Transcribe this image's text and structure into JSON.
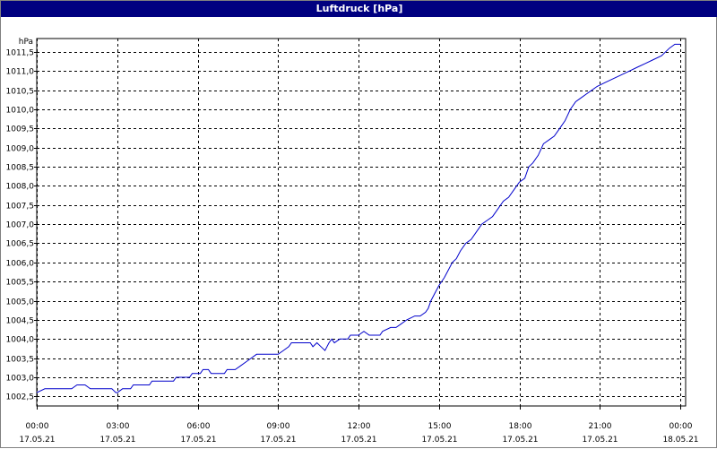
{
  "window": {
    "title": "Luftdruck [hPa]"
  },
  "chart_data": {
    "type": "line",
    "title": "Luftdruck [hPa]",
    "ylabel": "hPa",
    "xlabel": "",
    "grid": true,
    "legend": "none",
    "ylim": [
      1002.25,
      1011.85
    ],
    "yticks": [
      1002.5,
      1003.0,
      1003.5,
      1004.0,
      1004.5,
      1005.0,
      1005.5,
      1006.0,
      1006.5,
      1007.0,
      1007.5,
      1008.0,
      1008.5,
      1009.0,
      1009.5,
      1010.0,
      1010.5,
      1011.0,
      1011.5
    ],
    "ytick_labels": [
      "1002,5",
      "1003,0",
      "1003,5",
      "1004,0",
      "1004,5",
      "1005,0",
      "1005,5",
      "1006,0",
      "1006,5",
      "1007,0",
      "1007,5",
      "1008,0",
      "1008,5",
      "1009,0",
      "1009,5",
      "1010,0",
      "1010,5",
      "1011,0",
      "1011,5"
    ],
    "xlim": [
      0,
      24.2
    ],
    "xticks": [
      {
        "hour": 0,
        "time": "00:00",
        "date": "17.05.21"
      },
      {
        "hour": 3,
        "time": "03:00",
        "date": "17.05.21"
      },
      {
        "hour": 6,
        "time": "06:00",
        "date": "17.05.21"
      },
      {
        "hour": 9,
        "time": "09:00",
        "date": "17.05.21"
      },
      {
        "hour": 12,
        "time": "12:00",
        "date": "17.05.21"
      },
      {
        "hour": 15,
        "time": "15:00",
        "date": "17.05.21"
      },
      {
        "hour": 18,
        "time": "18:00",
        "date": "17.05.21"
      },
      {
        "hour": 21,
        "time": "21:00",
        "date": "17.05.21"
      },
      {
        "hour": 24,
        "time": "00:00",
        "date": "18.05.21"
      }
    ],
    "series": [
      {
        "color": "#0000cc",
        "points": [
          [
            0.0,
            1002.6
          ],
          [
            0.3,
            1002.7
          ],
          [
            0.6,
            1002.7
          ],
          [
            1.0,
            1002.7
          ],
          [
            1.3,
            1002.7
          ],
          [
            1.5,
            1002.8
          ],
          [
            1.8,
            1002.8
          ],
          [
            2.0,
            1002.7
          ],
          [
            2.5,
            1002.7
          ],
          [
            2.8,
            1002.7
          ],
          [
            2.95,
            1002.6
          ],
          [
            3.0,
            1002.6
          ],
          [
            3.2,
            1002.7
          ],
          [
            3.5,
            1002.7
          ],
          [
            3.6,
            1002.8
          ],
          [
            4.0,
            1002.8
          ],
          [
            4.2,
            1002.8
          ],
          [
            4.3,
            1002.9
          ],
          [
            4.8,
            1002.9
          ],
          [
            5.1,
            1002.9
          ],
          [
            5.2,
            1003.0
          ],
          [
            5.7,
            1003.0
          ],
          [
            5.8,
            1003.1
          ],
          [
            6.1,
            1003.1
          ],
          [
            6.2,
            1003.2
          ],
          [
            6.4,
            1003.2
          ],
          [
            6.5,
            1003.1
          ],
          [
            7.0,
            1003.1
          ],
          [
            7.1,
            1003.2
          ],
          [
            7.4,
            1003.2
          ],
          [
            7.6,
            1003.3
          ],
          [
            7.8,
            1003.4
          ],
          [
            8.0,
            1003.5
          ],
          [
            8.2,
            1003.6
          ],
          [
            8.5,
            1003.6
          ],
          [
            8.9,
            1003.6
          ],
          [
            9.0,
            1003.6
          ],
          [
            9.2,
            1003.7
          ],
          [
            9.4,
            1003.8
          ],
          [
            9.5,
            1003.9
          ],
          [
            10.0,
            1003.9
          ],
          [
            10.2,
            1003.9
          ],
          [
            10.3,
            1003.8
          ],
          [
            10.45,
            1003.9
          ],
          [
            10.6,
            1003.8
          ],
          [
            10.75,
            1003.7
          ],
          [
            10.9,
            1003.9
          ],
          [
            11.0,
            1004.0
          ],
          [
            11.1,
            1003.9
          ],
          [
            11.3,
            1004.0
          ],
          [
            11.6,
            1004.0
          ],
          [
            11.7,
            1004.1
          ],
          [
            12.0,
            1004.1
          ],
          [
            12.2,
            1004.2
          ],
          [
            12.4,
            1004.1
          ],
          [
            12.8,
            1004.1
          ],
          [
            12.9,
            1004.2
          ],
          [
            13.2,
            1004.3
          ],
          [
            13.4,
            1004.3
          ],
          [
            13.6,
            1004.4
          ],
          [
            13.8,
            1004.5
          ],
          [
            14.1,
            1004.6
          ],
          [
            14.3,
            1004.6
          ],
          [
            14.5,
            1004.7
          ],
          [
            14.6,
            1004.8
          ],
          [
            14.7,
            1005.0
          ],
          [
            14.85,
            1005.2
          ],
          [
            15.0,
            1005.4
          ],
          [
            15.2,
            1005.6
          ],
          [
            15.35,
            1005.8
          ],
          [
            15.5,
            1006.0
          ],
          [
            15.65,
            1006.1
          ],
          [
            15.8,
            1006.3
          ],
          [
            16.0,
            1006.5
          ],
          [
            16.2,
            1006.6
          ],
          [
            16.4,
            1006.8
          ],
          [
            16.6,
            1007.0
          ],
          [
            16.8,
            1007.1
          ],
          [
            17.0,
            1007.2
          ],
          [
            17.2,
            1007.4
          ],
          [
            17.4,
            1007.6
          ],
          [
            17.6,
            1007.7
          ],
          [
            17.8,
            1007.9
          ],
          [
            18.0,
            1008.1
          ],
          [
            18.2,
            1008.2
          ],
          [
            18.35,
            1008.5
          ],
          [
            18.5,
            1008.6
          ],
          [
            18.7,
            1008.8
          ],
          [
            18.9,
            1009.1
          ],
          [
            19.1,
            1009.2
          ],
          [
            19.3,
            1009.3
          ],
          [
            19.5,
            1009.5
          ],
          [
            19.7,
            1009.7
          ],
          [
            19.9,
            1010.0
          ],
          [
            20.1,
            1010.2
          ],
          [
            20.3,
            1010.3
          ],
          [
            20.5,
            1010.4
          ],
          [
            20.7,
            1010.5
          ],
          [
            20.9,
            1010.6
          ],
          [
            21.2,
            1010.7
          ],
          [
            21.5,
            1010.8
          ],
          [
            21.8,
            1010.9
          ],
          [
            22.1,
            1011.0
          ],
          [
            22.4,
            1011.1
          ],
          [
            22.7,
            1011.2
          ],
          [
            23.0,
            1011.3
          ],
          [
            23.3,
            1011.4
          ],
          [
            23.6,
            1011.6
          ],
          [
            23.8,
            1011.7
          ],
          [
            24.0,
            1011.7
          ]
        ]
      }
    ]
  }
}
